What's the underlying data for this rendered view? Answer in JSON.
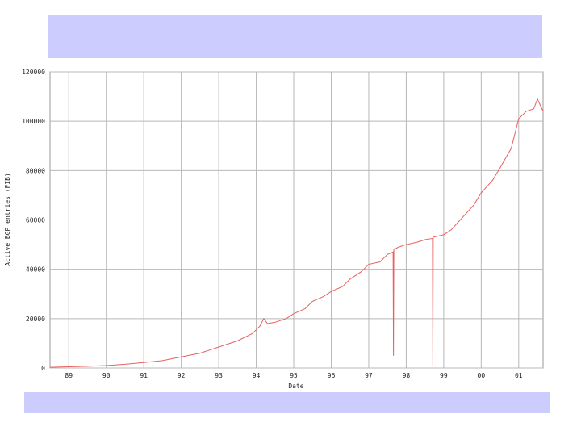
{
  "chart_data": {
    "type": "line",
    "y_label": "Active BGP entries (FIB)",
    "x_label": "Date",
    "xlim": [
      1988.5,
      2001.65
    ],
    "ylim": [
      0,
      120000
    ],
    "xticks": [
      {
        "value": 1989,
        "label": "89"
      },
      {
        "value": 1990,
        "label": "90"
      },
      {
        "value": 1991,
        "label": "91"
      },
      {
        "value": 1992,
        "label": "92"
      },
      {
        "value": 1993,
        "label": "93"
      },
      {
        "value": 1994,
        "label": "94"
      },
      {
        "value": 1995,
        "label": "95"
      },
      {
        "value": 1996,
        "label": "96"
      },
      {
        "value": 1997,
        "label": "97"
      },
      {
        "value": 1998,
        "label": "98"
      },
      {
        "value": 1999,
        "label": "99"
      },
      {
        "value": 2000,
        "label": "00"
      },
      {
        "value": 2001,
        "label": "01"
      }
    ],
    "yticks": [
      0,
      20000,
      40000,
      60000,
      80000,
      100000,
      120000
    ],
    "grid": true,
    "series": [
      {
        "color": "#e86060",
        "x": [
          1988.5,
          1989,
          1989.5,
          1990,
          1990.5,
          1991,
          1991.5,
          1992,
          1992.5,
          1993,
          1993.5,
          1993.9,
          1994.1,
          1994.2,
          1994.3,
          1994.5,
          1994.8,
          1995,
          1995.3,
          1995.5,
          1995.8,
          1996,
          1996.3,
          1996.5,
          1996.8,
          1997,
          1997.3,
          1997.5,
          1997.65,
          1997.66,
          1997.67,
          1997.8,
          1998,
          1998.3,
          1998.5,
          1998.7,
          1998.71,
          1998.72,
          1999,
          1999.2,
          1999.5,
          1999.8,
          2000,
          2000.3,
          2000.5,
          2000.8,
          2001,
          2001.2,
          2001.4,
          2001.5,
          2001.65
        ],
        "values": [
          300,
          500,
          700,
          1000,
          1500,
          2200,
          3000,
          4500,
          6000,
          8500,
          11000,
          14000,
          17000,
          20000,
          18000,
          18500,
          20000,
          22000,
          24000,
          27000,
          29000,
          31000,
          33000,
          36000,
          39000,
          42000,
          43000,
          46000,
          47000,
          5000,
          48000,
          49000,
          50000,
          51000,
          52000,
          52500,
          1000,
          53000,
          54000,
          56000,
          61000,
          66000,
          71000,
          76000,
          81000,
          89000,
          101000,
          104000,
          105000,
          109000,
          104000
        ]
      }
    ]
  }
}
